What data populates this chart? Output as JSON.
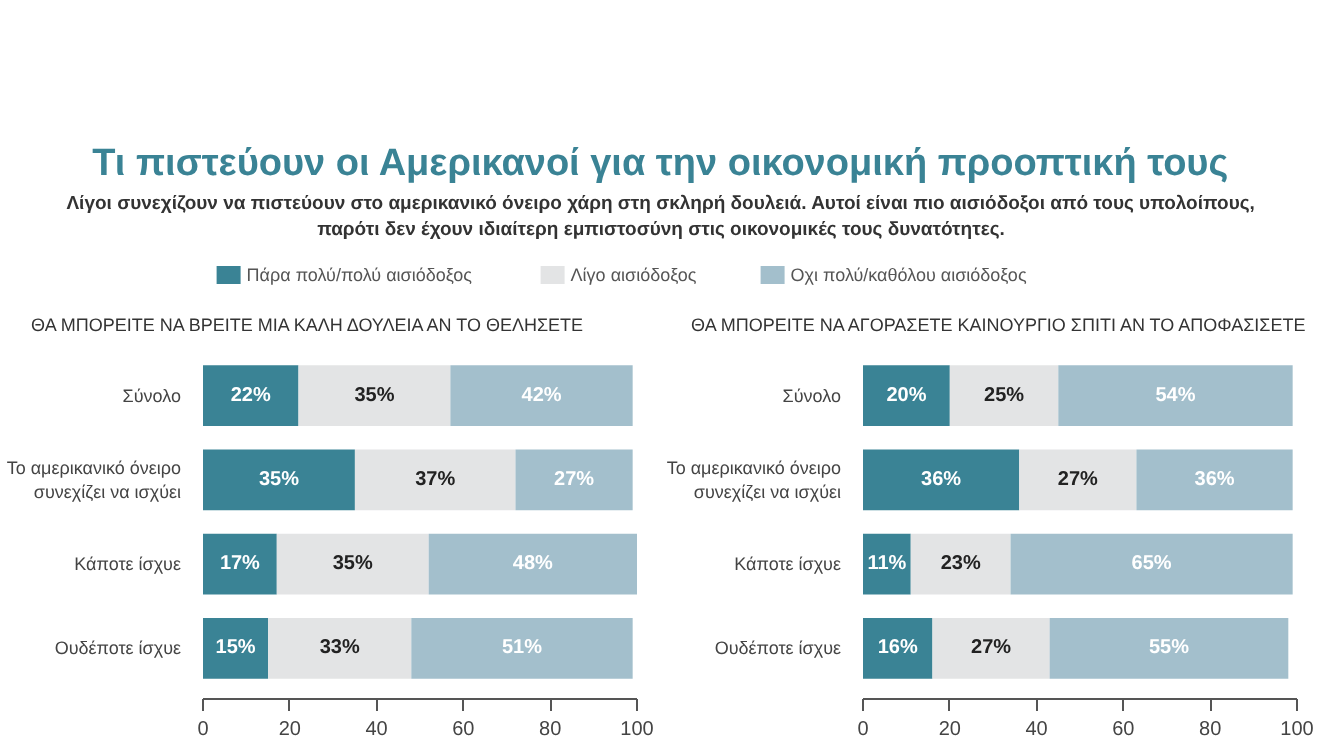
{
  "chart_data": [
    {
      "type": "other",
      "title": "Τι πιστεύουν οι Αμερικανοί για την οικονομική προοπτική τους",
      "subtitle": "Λίγοι συνεχίζουν να πιστεύουν στο αμερικανικό όνειρο χάρη στη σκληρή δουλειά. Αυτοί είναι πιο αισιόδοξοι από τους υπολοίπους,\nπαρότι δεν έχουν ιδιαίτερη εμπιστοσύνη στις οικονομικές τους δυνατότητες."
    },
    {
      "type": "bar",
      "orientation": "horizontal",
      "stacked": true,
      "title": "ΘΑ ΜΠΟΡΕΙΤΕ ΝΑ ΒΡΕΙΤΕ ΜΙΑ ΚΑΛΗ ΔΟΥΛΕΙΑ ΑΝ ΤΟ ΘΕΛΗΣΕΤΕ",
      "legend": "top",
      "grid": false,
      "categories": [
        "Σύνολο",
        "Το αμερικανικό όνειρο\nσυνεχίζει να ισχύει",
        "Κάποτε ίσχυε",
        "Ουδέποτε ίσχυε"
      ],
      "xlim": [
        0,
        100
      ],
      "xticks": [
        0,
        20,
        40,
        60,
        80,
        100
      ],
      "series": [
        {
          "name": "Πάρα πολύ/πολύ αισιόδοξος",
          "color": "#3a8395",
          "values": [
            22,
            35,
            17,
            15
          ],
          "value_labels": [
            "22%",
            "35%",
            "17%",
            "15%"
          ]
        },
        {
          "name": "Λίγο αισιόδοξος",
          "color": "#e3e4e5",
          "values": [
            35,
            37,
            35,
            33
          ],
          "value_labels": [
            "35%",
            "37%",
            "35%",
            "33%"
          ]
        },
        {
          "name": "Οχι πολύ/καθόλου αισιόδοξος",
          "color": "#a3bfcc",
          "values": [
            42,
            27,
            48,
            51
          ],
          "value_labels": [
            "42%",
            "27%",
            "48%",
            "51%"
          ]
        }
      ]
    },
    {
      "type": "bar",
      "orientation": "horizontal",
      "stacked": true,
      "title": "ΘΑ ΜΠΟΡΕΙΤΕ ΝΑ ΑΓΟΡΑΣΕΤΕ ΚΑΙΝΟΥΡΓΙΟ ΣΠΙΤΙ ΑΝ ΤΟ ΑΠΟΦΑΣΙΣΕΤΕ",
      "grid": false,
      "categories": [
        "Σύνολο",
        "Το αμερικανικό όνειρο\nσυνεχίζει να ισχύει",
        "Κάποτε ίσχυε",
        "Ουδέποτε ίσχυε"
      ],
      "xlim": [
        0,
        100
      ],
      "xticks": [
        0,
        20,
        40,
        60,
        80,
        100
      ],
      "series": [
        {
          "color": "#3a8395",
          "values": [
            20,
            36,
            11,
            16
          ],
          "value_labels": [
            "20%",
            "36%",
            "11%",
            "16%"
          ]
        },
        {
          "color": "#e3e4e5",
          "values": [
            25,
            27,
            23,
            27
          ],
          "value_labels": [
            "25%",
            "27%",
            "23%",
            "27%"
          ]
        },
        {
          "color": "#a3bfcc",
          "values": [
            54,
            36,
            65,
            55
          ],
          "value_labels": [
            "54%",
            "36%",
            "65%",
            "55%"
          ]
        }
      ]
    }
  ]
}
